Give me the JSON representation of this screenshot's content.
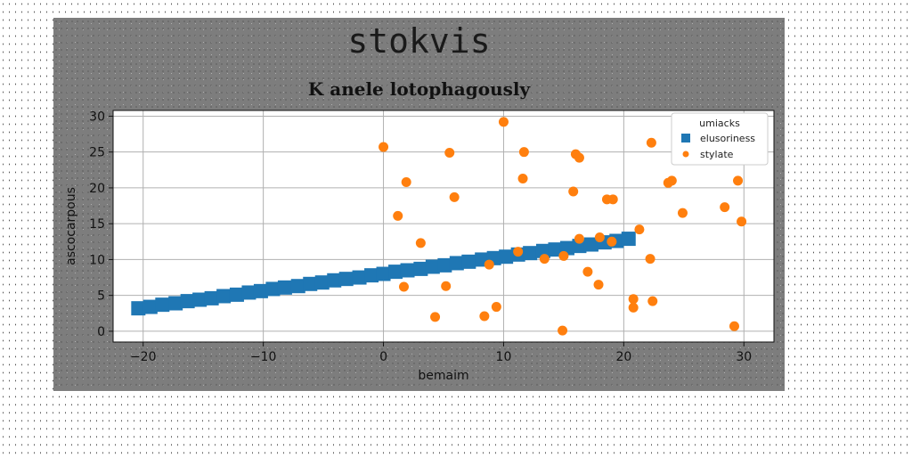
{
  "figure_title": "stokvis",
  "chart_data": {
    "type": "scatter",
    "title": "K anele lotophagously",
    "xlabel": "bemaim",
    "ylabel": "ascocarpous",
    "xlim": [
      -22.5,
      32.5
    ],
    "ylim": [
      -1.5,
      30.8
    ],
    "xticks": [
      -20,
      -10,
      0,
      10,
      20,
      30
    ],
    "xtick_labels": [
      "−20",
      "−10",
      "0",
      "10",
      "20",
      "30"
    ],
    "yticks": [
      0,
      5,
      10,
      15,
      20,
      25,
      30
    ],
    "ytick_labels": [
      "0",
      "5",
      "10",
      "15",
      "20",
      "25",
      "30"
    ],
    "grid": true,
    "legend": {
      "title": "umiacks",
      "position": "top-right"
    },
    "series": [
      {
        "name": "elusoriness",
        "marker": "square",
        "color": "#1f77b4",
        "x": [
          -20.4,
          -19.4,
          -18.4,
          -17.3,
          -16.3,
          -15.3,
          -14.3,
          -13.3,
          -12.2,
          -11.2,
          -10.2,
          -9.2,
          -8.2,
          -7.1,
          -6.1,
          -5.1,
          -4.1,
          -3.1,
          -2.0,
          -1.0,
          0.0,
          1.0,
          2.0,
          3.1,
          4.1,
          5.1,
          6.1,
          7.1,
          8.2,
          9.2,
          10.2,
          11.2,
          12.2,
          13.3,
          14.3,
          15.3,
          16.3,
          17.3,
          18.4,
          19.4,
          20.4
        ],
        "y": [
          3.2,
          3.4,
          3.7,
          3.9,
          4.2,
          4.4,
          4.6,
          4.9,
          5.1,
          5.4,
          5.6,
          5.9,
          6.1,
          6.3,
          6.6,
          6.8,
          7.1,
          7.3,
          7.5,
          7.8,
          8.0,
          8.3,
          8.5,
          8.7,
          9.0,
          9.2,
          9.5,
          9.7,
          10.0,
          10.2,
          10.4,
          10.7,
          10.9,
          11.2,
          11.4,
          11.6,
          11.9,
          12.1,
          12.4,
          12.6,
          12.9
        ]
      },
      {
        "name": "stylate",
        "marker": "circle",
        "color": "#ff7f0e",
        "x": [
          0.0,
          10.0,
          5.5,
          11.7,
          16.0,
          16.3,
          22.3,
          1.9,
          11.6,
          15.8,
          23.7,
          24.0,
          29.5,
          5.9,
          18.6,
          19.1,
          28.4,
          24.9,
          1.2,
          29.8,
          21.3,
          3.1,
          16.3,
          18.0,
          11.2,
          19.0,
          13.4,
          15.0,
          22.2,
          8.8,
          17.0,
          1.7,
          5.2,
          17.9,
          20.8,
          22.4,
          20.8,
          9.4,
          4.3,
          8.4,
          14.9,
          29.2
        ],
        "y": [
          25.7,
          29.2,
          24.9,
          25.0,
          24.7,
          24.2,
          26.3,
          20.8,
          21.3,
          19.5,
          20.7,
          21.0,
          21.0,
          18.7,
          18.4,
          18.4,
          17.3,
          16.5,
          16.1,
          15.3,
          14.2,
          12.3,
          12.9,
          13.1,
          11.1,
          12.5,
          10.1,
          10.5,
          10.1,
          9.3,
          8.3,
          6.2,
          6.3,
          6.5,
          4.5,
          4.2,
          3.3,
          3.4,
          2.0,
          2.1,
          0.1,
          0.7
        ]
      }
    ]
  }
}
